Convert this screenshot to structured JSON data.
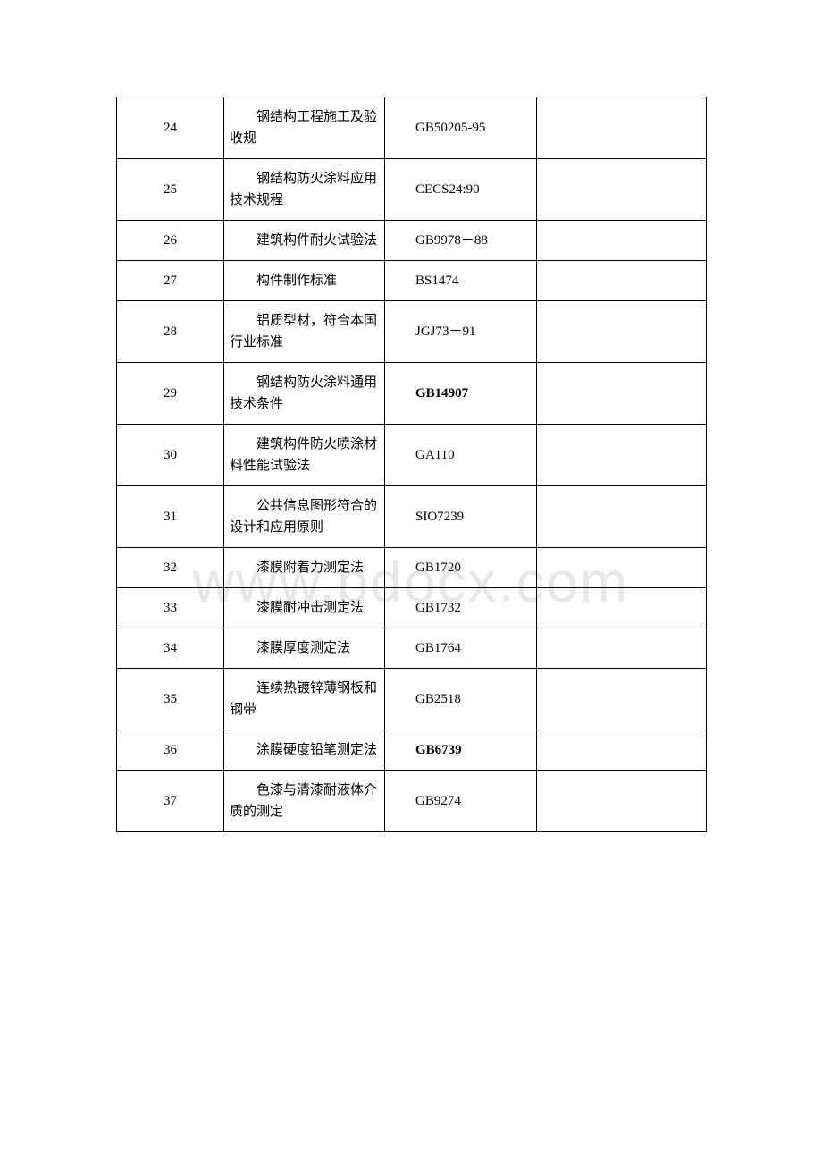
{
  "watermark": "www.bdocx.com",
  "table": {
    "columns": {
      "num_width": 120,
      "name_width": 180,
      "code_width": 170,
      "empty_width": 190
    },
    "rows": [
      {
        "num": "24",
        "name": "钢结构工程施工及验收规",
        "code": "GB50205-95",
        "bold": false,
        "wrap": false
      },
      {
        "num": "25",
        "name": "钢结构防火涂料应用技术规程",
        "code": "CECS24:90",
        "bold": false,
        "wrap": false
      },
      {
        "num": "26",
        "name": "建筑构件耐火试验法",
        "code": "GB9978－88",
        "bold": false,
        "wrap": true
      },
      {
        "num": "27",
        "name": "构件制作标准",
        "code": "BS1474",
        "bold": false,
        "wrap": false
      },
      {
        "num": "28",
        "name": "铝质型材，符合本国行业标准",
        "code": "JGJ73－91",
        "bold": false,
        "wrap": false
      },
      {
        "num": "29",
        "name": "钢结构防火涂料通用技术条件",
        "code": "GB14907",
        "bold": true,
        "wrap": true
      },
      {
        "num": "30",
        "name": "建筑构件防火喷涂材料性能试验法",
        "code": "GA110",
        "bold": false,
        "wrap": false
      },
      {
        "num": "31",
        "name": "公共信息图形符合的设计和应用原则",
        "code": "SIO7239",
        "bold": false,
        "wrap": false
      },
      {
        "num": "32",
        "name": "漆膜附着力测定法",
        "code": "GB1720",
        "bold": false,
        "wrap": false
      },
      {
        "num": "33",
        "name": "漆膜耐冲击测定法",
        "code": "GB1732",
        "bold": false,
        "wrap": false
      },
      {
        "num": "34",
        "name": "漆膜厚度测定法",
        "code": "GB1764",
        "bold": false,
        "wrap": false
      },
      {
        "num": "35",
        "name": "连续热镀锌薄钢板和钢带",
        "code": "GB2518",
        "bold": false,
        "wrap": false
      },
      {
        "num": "36",
        "name": "涂膜硬度铅笔测定法",
        "code": "GB6739",
        "bold": true,
        "wrap": false
      },
      {
        "num": "37",
        "name": "色漆与清漆耐液体介质的测定",
        "code": "GB9274",
        "bold": false,
        "wrap": false
      }
    ]
  },
  "styles": {
    "background_color": "#ffffff",
    "border_color": "#000000",
    "watermark_color": "#e8e8e8",
    "text_color": "#000000",
    "font_size": 15,
    "watermark_fontsize": 64
  }
}
